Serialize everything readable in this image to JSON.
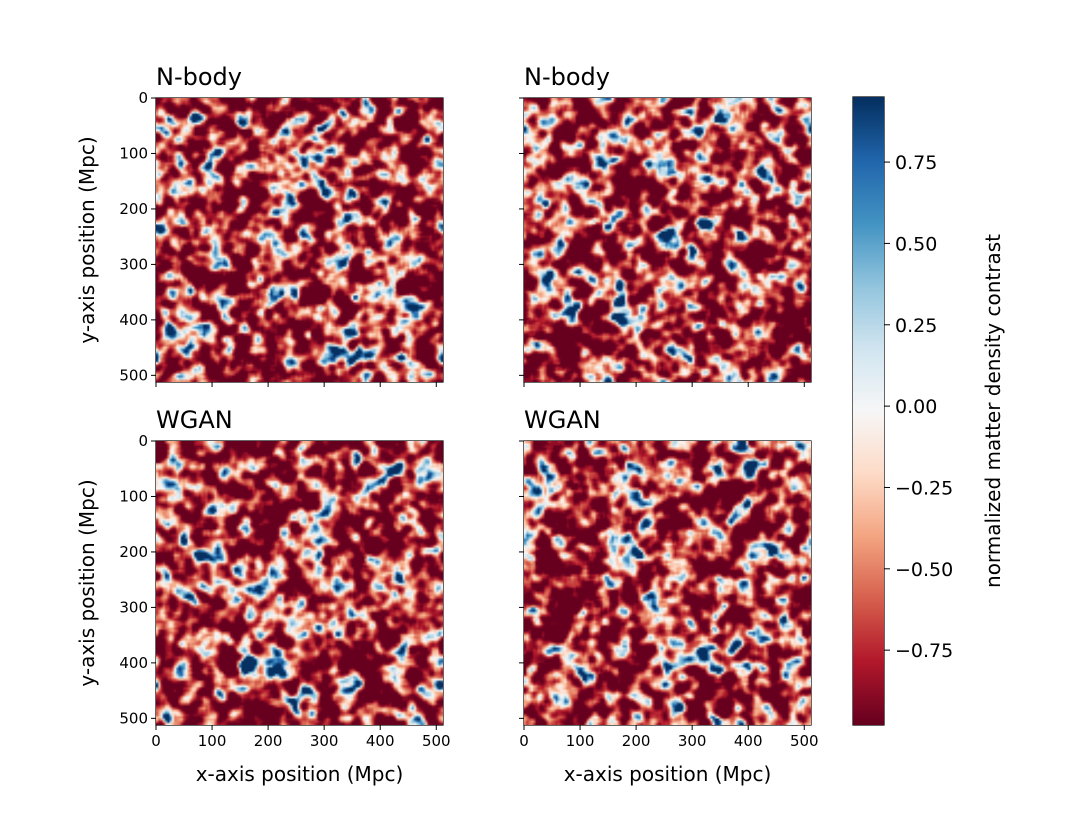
{
  "chart_data": {
    "type": "heatmap",
    "colormap": "RdBu",
    "panels": [
      {
        "title": "N-body",
        "xlabel": "",
        "ylabel": "y-axis position (Mpc)",
        "xlim": [
          0,
          512
        ],
        "ylim": [
          512,
          0
        ],
        "seed": 11
      },
      {
        "title": "N-body",
        "xlabel": "",
        "ylabel": "",
        "xlim": [
          0,
          512
        ],
        "ylim": [
          512,
          0
        ],
        "seed": 29
      },
      {
        "title": "WGAN",
        "xlabel": "x-axis position (Mpc)",
        "ylabel": "y-axis position (Mpc)",
        "xlim": [
          0,
          512
        ],
        "ylim": [
          512,
          0
        ],
        "seed": 47
      },
      {
        "title": "WGAN",
        "xlabel": "x-axis position (Mpc)",
        "ylabel": "",
        "xlim": [
          0,
          512
        ],
        "ylim": [
          512,
          0
        ],
        "seed": 83
      }
    ],
    "x_ticks": [
      "0",
      "100",
      "200",
      "300",
      "400",
      "500"
    ],
    "y_ticks": [
      "0",
      "100",
      "200",
      "300",
      "400",
      "500"
    ],
    "colorbar": {
      "label": "normalized matter density contrast",
      "range": [
        -0.98,
        0.95
      ],
      "ticks": [
        {
          "value": 0.75,
          "label": "0.75"
        },
        {
          "value": 0.5,
          "label": "0.50"
        },
        {
          "value": 0.25,
          "label": "0.25"
        },
        {
          "value": 0.0,
          "label": "0.00"
        },
        {
          "value": -0.25,
          "label": "−0.25"
        },
        {
          "value": -0.5,
          "label": "−0.50"
        },
        {
          "value": -0.75,
          "label": "−0.75"
        }
      ]
    }
  }
}
